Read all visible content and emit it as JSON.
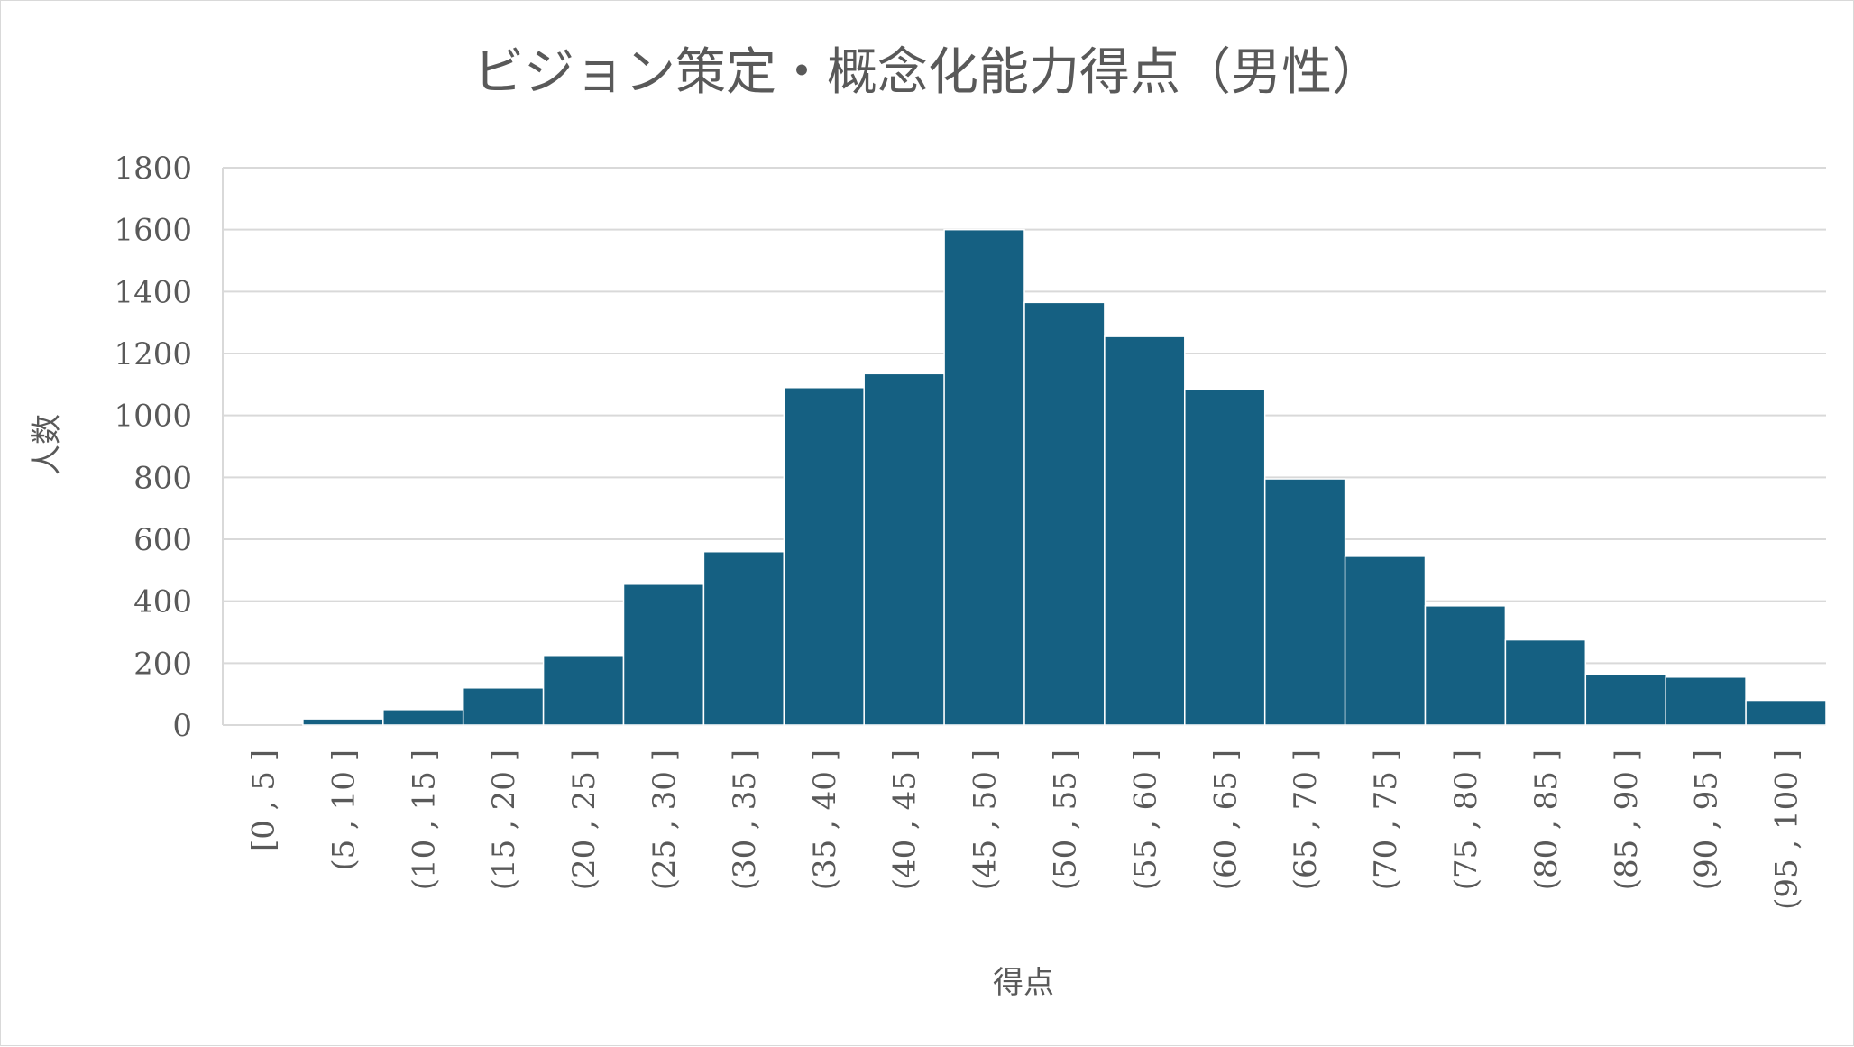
{
  "chart_data": {
    "type": "bar",
    "title": "ビジョン策定・概念化能力得点（男性）",
    "xlabel": "得点",
    "ylabel": "人数",
    "ylim": [
      0,
      1800
    ],
    "yticks": [
      0,
      200,
      400,
      600,
      800,
      1000,
      1200,
      1400,
      1600,
      1800
    ],
    "categories": [
      "[0 , 5 ]",
      "(5 , 10 ]",
      "(10 , 15 ]",
      "(15 , 20 ]",
      "(20 , 25 ]",
      "(25 , 30 ]",
      "(30 , 35 ]",
      "(35 , 40 ]",
      "(40 , 45 ]",
      "(45 , 50 ]",
      "(50 , 55 ]",
      "(55 , 60 ]",
      "(60 , 65 ]",
      "(65 , 70 ]",
      "(70 , 75 ]",
      "(75 , 80 ]",
      "(80 , 85 ]",
      "(85 , 90 ]",
      "(90 , 95 ]",
      "(95 , 100 ]"
    ],
    "values": [
      0,
      20,
      50,
      120,
      225,
      455,
      560,
      1090,
      1135,
      1600,
      1365,
      1255,
      1085,
      795,
      545,
      385,
      275,
      165,
      155,
      80
    ],
    "grid": true,
    "legend": "none",
    "bar_color": "#156082",
    "grid_color": "#d9d9d9"
  }
}
